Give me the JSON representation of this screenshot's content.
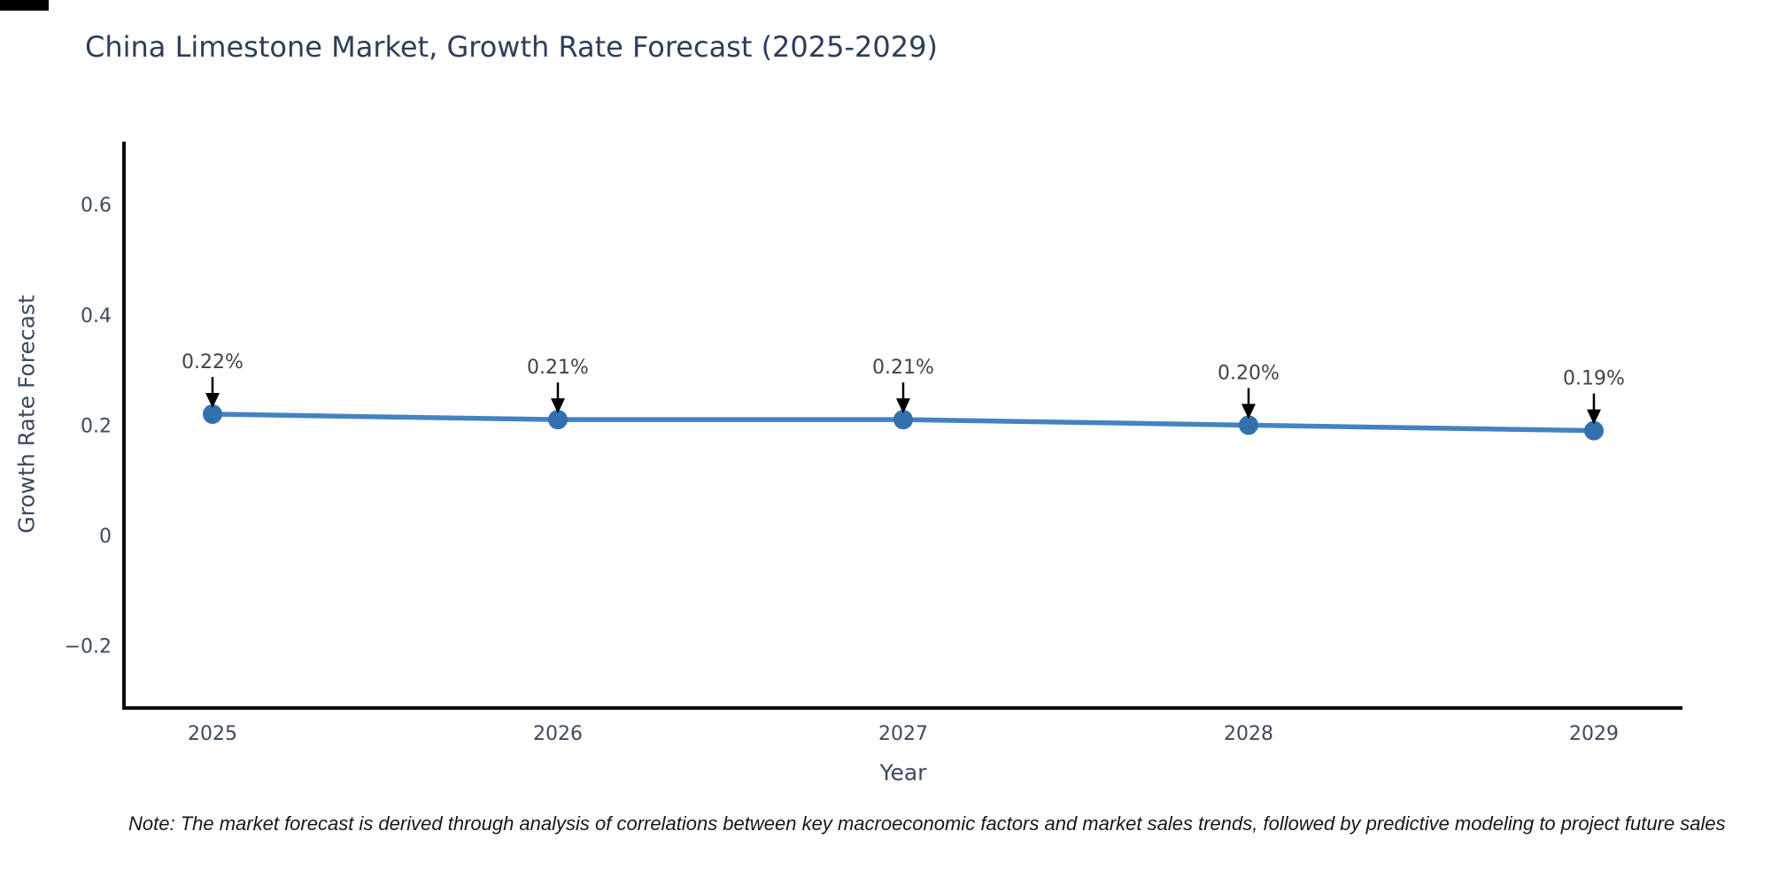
{
  "chart_data": {
    "type": "line",
    "title": "China Limestone Market, Growth Rate Forecast (2025-2029)",
    "xlabel": "Year",
    "ylabel": "Growth Rate Forecast",
    "x": [
      "2025",
      "2026",
      "2027",
      "2028",
      "2029"
    ],
    "series": [
      {
        "name": "Growth Rate Forecast",
        "values": [
          0.22,
          0.21,
          0.21,
          0.2,
          0.19
        ],
        "point_labels": [
          "0.22%",
          "0.21%",
          "0.21%",
          "0.20%",
          "0.19%"
        ]
      }
    ],
    "yticks": [
      0.6,
      0.4,
      0.2,
      0,
      -0.2
    ],
    "ytick_labels": [
      "0.6",
      "0.4",
      "0.2",
      "0",
      "−0.2"
    ],
    "ylim": [
      -0.31,
      0.71
    ],
    "grid": false,
    "legend_position": "none",
    "annotation_arrows": true,
    "note": "Note: The market forecast is derived through analysis of correlations between key macroeconomic factors and market sales trends, followed by predictive modeling to project future sales",
    "colors": {
      "line": "#4383c1",
      "marker": "#3470ad",
      "axis_spine": "#0d0d0d",
      "title_text": "#2c3e5a",
      "axis_label_text": "#3b4a5f",
      "tick_text": "#3d4a5c",
      "annotation_text": "#3f434a",
      "arrow": "#000000",
      "note_text": "#16181c",
      "background": "#ffffff"
    }
  }
}
